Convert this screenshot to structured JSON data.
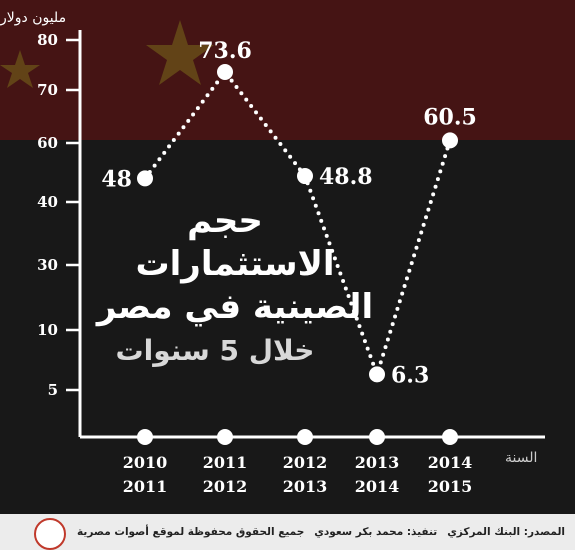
{
  "chart_data": {
    "type": "line",
    "title": [
      "حجم",
      "الاستثمارات",
      "الصينية في مصر"
    ],
    "subtitle": "خلال 5 سنوات",
    "unit_label": "مليون دولار",
    "xlabel": "السنة",
    "categories": [
      [
        "2010",
        "2011"
      ],
      [
        "2011",
        "2012"
      ],
      [
        "2012",
        "2013"
      ],
      [
        "2013",
        "2014"
      ],
      [
        "2014",
        "2015"
      ]
    ],
    "values": [
      48,
      73.6,
      48.8,
      6.3,
      60.5
    ],
    "data_labels": [
      "48",
      "73.6",
      "48.8",
      "6.3",
      "60.5"
    ],
    "yticks": [
      "80",
      "70",
      "60",
      "40",
      "30",
      "10",
      "5"
    ],
    "ylim": [
      0,
      80
    ],
    "grid": false,
    "colors": {
      "line": "#ffffff",
      "background": "#0d0d0d"
    }
  },
  "footer": {
    "source": "المصدر: البنك المركزي",
    "credit": "تنفيذ: محمد بكر سعودي",
    "rights": "جميع الحقوق محفوظة لموقع أصوات مصرية"
  },
  "logo": "أصوات مصرية"
}
